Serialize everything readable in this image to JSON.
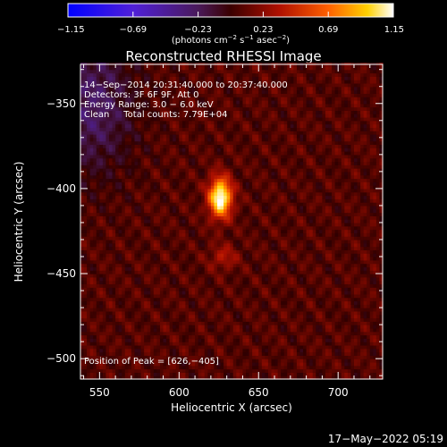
{
  "chart_data": {
    "type": "heatmap",
    "title": "Reconstructed RHESSI Image",
    "xlabel": "Heliocentric X (arcsec)",
    "ylabel": "Heliocentric Y (arcsec)",
    "xlim": [
      538,
      728
    ],
    "ylim": [
      -512,
      -327
    ],
    "x_ticks": [
      550,
      600,
      650,
      700
    ],
    "x_tick_labels": [
      "550",
      "600",
      "650",
      "700"
    ],
    "y_ticks": [
      -350,
      -400,
      -450,
      -500
    ],
    "y_tick_labels": [
      "−350",
      "−400",
      "−450",
      "−500"
    ],
    "colorbar": {
      "range": [
        -1.15,
        1.15
      ],
      "ticks": [
        -1.15,
        -0.69,
        -0.23,
        0.23,
        0.69,
        1.15
      ],
      "tick_labels": [
        "−1.15",
        "−0.69",
        "−0.23",
        "0.23",
        "0.69",
        "1.15"
      ],
      "label_main": "(photons cm",
      "label_exp1": "−2",
      "label_mid1": " s",
      "label_exp2": "−1",
      "label_mid2": " asec",
      "label_exp3": "−2",
      "label_end": ")"
    },
    "annotations": [
      "14−Sep−2014 20:31:40.000 to 20:37:40.000",
      "Detectors: 3F 6F 9F, Att 0",
      "Energy Range: 3.0 − 6.0 keV",
      "Clean     Total counts: 7.79E+04"
    ],
    "peak_label": "Position of Peak = [626,−405]",
    "peak": {
      "x": 626,
      "y": -405,
      "value": 1.15
    },
    "sources": [
      {
        "x": 626,
        "y": -405,
        "sx": 5,
        "sy": 8,
        "amp": 1.15
      },
      {
        "x": 628,
        "y": -440,
        "sx": 6,
        "sy": 5,
        "amp": 0.25
      }
    ],
    "negative_region": {
      "x": 545,
      "y": -350,
      "value": -0.35
    }
  },
  "timestamp": "17−May−2022 05:19"
}
